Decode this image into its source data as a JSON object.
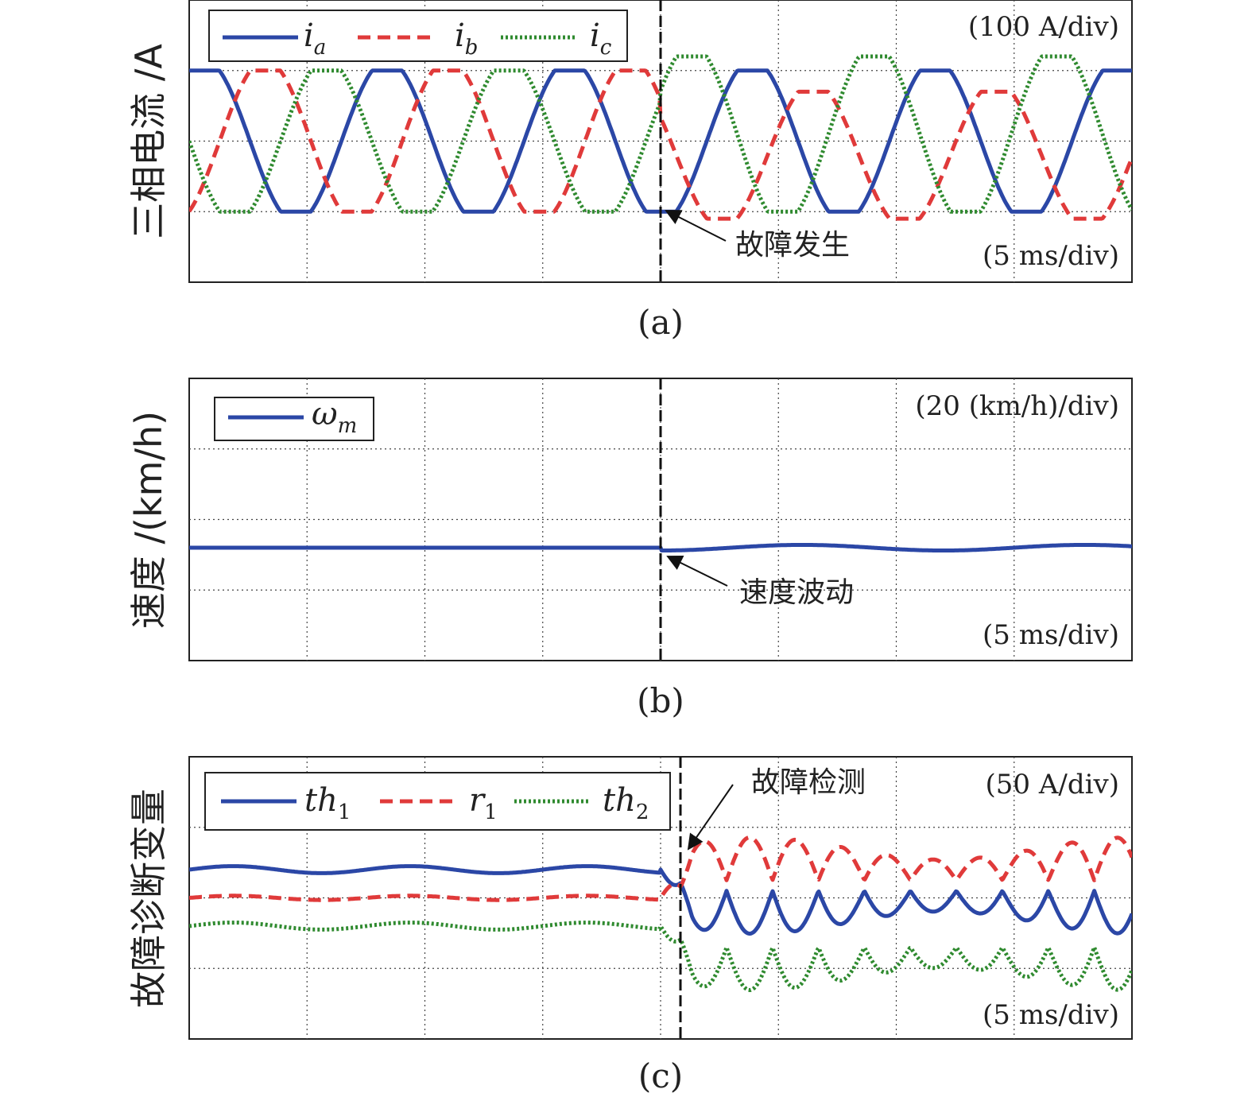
{
  "chart_data": [
    {
      "type": "line",
      "panel_label": "(a)",
      "ylabel": "三相电流 /A",
      "scale_label": "(100 A/div)",
      "time_scale_label": "(5 ms/div)",
      "annotation": "故障发生",
      "fault_time_div": 4.0,
      "x_range_div": [
        0,
        8
      ],
      "y_range_div": [
        -2,
        2
      ],
      "grid": true,
      "legend_position": "top-left",
      "legend": [
        {
          "name": "i",
          "sub": "a"
        },
        {
          "name": "i",
          "sub": "b"
        },
        {
          "name": "i",
          "sub": "c"
        }
      ],
      "series": [
        {
          "name": "ia",
          "color": "#2b47a6",
          "style": "solid",
          "amplitude_div": 1.0,
          "period_div": 1.55,
          "phase_deg": 60,
          "post_fault": {
            "amplitude_div": 1.0,
            "period_div": 1.55,
            "phase_deg": 60,
            "offset_div": 0.0
          }
        },
        {
          "name": "ib",
          "color": "#e03a3a",
          "style": "dashed",
          "amplitude_div": 1.0,
          "period_div": 1.55,
          "phase_deg": -60,
          "post_fault": {
            "amplitude_div": 0.9,
            "period_div": 1.55,
            "phase_deg": -60,
            "offset_div": -0.2
          }
        },
        {
          "name": "ic",
          "color": "#2f8a2f",
          "style": "dotted",
          "amplitude_div": 1.0,
          "period_div": 1.55,
          "phase_deg": 180,
          "post_fault": {
            "amplitude_div": 1.1,
            "period_div": 1.55,
            "phase_deg": 180,
            "offset_div": 0.1
          }
        }
      ]
    },
    {
      "type": "line",
      "panel_label": "(b)",
      "ylabel": "速度 /(km/h)",
      "scale_label": "(20 (km/h)/div)",
      "time_scale_label": "(5 ms/div)",
      "annotation": "速度波动",
      "fault_time_div": 4.0,
      "x_range_div": [
        0,
        8
      ],
      "y_range_div": [
        -2,
        2
      ],
      "grid": true,
      "legend_position": "top-left",
      "legend": [
        {
          "name": "ω",
          "sub": "m"
        }
      ],
      "series": [
        {
          "name": "ωm",
          "color": "#2b47a6",
          "style": "solid",
          "level_div": -0.4,
          "post_fault_ripple_div": 0.04
        }
      ]
    },
    {
      "type": "line",
      "panel_label": "(c)",
      "ylabel": "故障诊断变量",
      "scale_label": "(50 A/div)",
      "time_scale_label": "(5 ms/div)",
      "annotation": "故障检测",
      "fault_time_div": 4.0,
      "detect_time_div": 4.17,
      "x_range_div": [
        0,
        8
      ],
      "y_range_div": [
        -2,
        2
      ],
      "grid": true,
      "legend_position": "top-left",
      "legend": [
        {
          "name": "th",
          "sub": "1"
        },
        {
          "name": "r",
          "sub": "1"
        },
        {
          "name": "th",
          "sub": "2"
        }
      ],
      "series": [
        {
          "name": "th1",
          "color": "#2b47a6",
          "style": "solid",
          "level_div": 0.4,
          "pre_ripple_div": 0.05,
          "post_fault_amplitude_div": 0.45
        },
        {
          "name": "r1",
          "color": "#e03a3a",
          "style": "dashed",
          "level_div": 0.0,
          "pre_ripple_div": 0.03,
          "post_fault_amplitude_div": 0.45
        },
        {
          "name": "th2",
          "color": "#2f8a2f",
          "style": "dotted",
          "level_div": -0.4,
          "pre_ripple_div": 0.05,
          "post_fault_amplitude_div": 0.45
        }
      ]
    }
  ]
}
